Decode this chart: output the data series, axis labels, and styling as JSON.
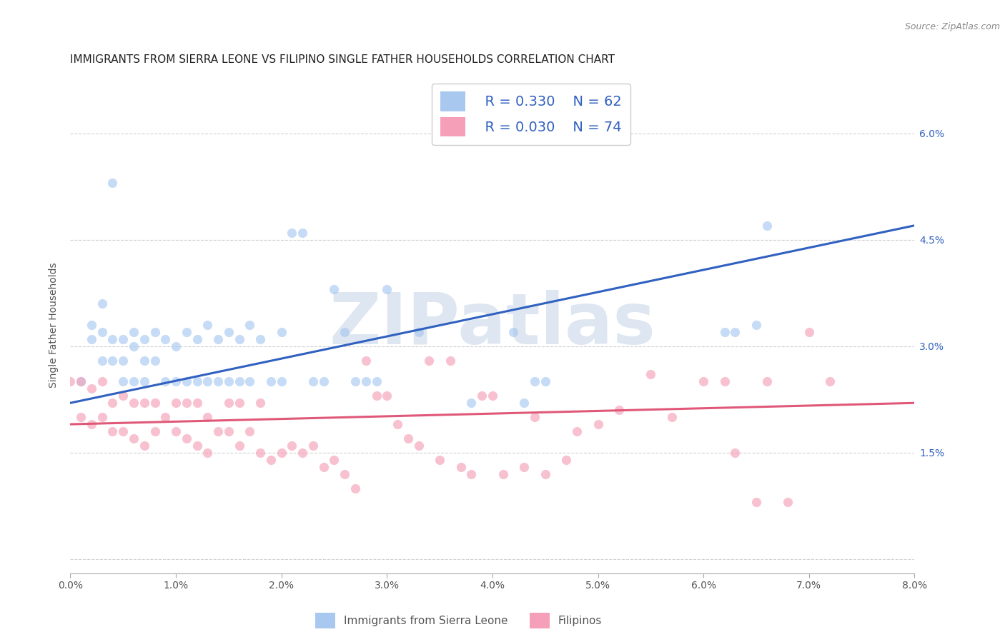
{
  "title": "IMMIGRANTS FROM SIERRA LEONE VS FILIPINO SINGLE FATHER HOUSEHOLDS CORRELATION CHART",
  "source": "Source: ZipAtlas.com",
  "ylabel": "Single Father Households",
  "xmin": 0.0,
  "xmax": 0.08,
  "ymin": -0.002,
  "ymax": 0.068,
  "xticks": [
    0.0,
    0.01,
    0.02,
    0.03,
    0.04,
    0.05,
    0.06,
    0.07,
    0.08
  ],
  "yticks": [
    0.0,
    0.015,
    0.03,
    0.045,
    0.06
  ],
  "ytick_labels": [
    "",
    "1.5%",
    "3.0%",
    "4.5%",
    "6.0%"
  ],
  "xtick_labels": [
    "0.0%",
    "1.0%",
    "2.0%",
    "3.0%",
    "4.0%",
    "5.0%",
    "6.0%",
    "7.0%",
    "8.0%"
  ],
  "legend_entries": [
    {
      "label": "Immigrants from Sierra Leone",
      "R": "0.330",
      "N": "62",
      "color": "#a8c8f0"
    },
    {
      "label": "Filipinos",
      "R": "0.030",
      "N": "74",
      "color": "#f5a0b8"
    }
  ],
  "blue_scatter_x": [
    0.001,
    0.002,
    0.002,
    0.003,
    0.003,
    0.003,
    0.004,
    0.004,
    0.004,
    0.005,
    0.005,
    0.005,
    0.006,
    0.006,
    0.006,
    0.007,
    0.007,
    0.007,
    0.008,
    0.008,
    0.009,
    0.009,
    0.01,
    0.01,
    0.011,
    0.011,
    0.012,
    0.012,
    0.013,
    0.013,
    0.014,
    0.014,
    0.015,
    0.015,
    0.016,
    0.016,
    0.017,
    0.017,
    0.018,
    0.019,
    0.02,
    0.02,
    0.021,
    0.022,
    0.023,
    0.024,
    0.025,
    0.026,
    0.027,
    0.028,
    0.029,
    0.03,
    0.033,
    0.038,
    0.042,
    0.043,
    0.044,
    0.045,
    0.062,
    0.063,
    0.065,
    0.066
  ],
  "blue_scatter_y": [
    0.025,
    0.033,
    0.031,
    0.032,
    0.028,
    0.036,
    0.031,
    0.028,
    0.053,
    0.031,
    0.028,
    0.025,
    0.03,
    0.025,
    0.032,
    0.031,
    0.028,
    0.025,
    0.032,
    0.028,
    0.031,
    0.025,
    0.03,
    0.025,
    0.032,
    0.025,
    0.031,
    0.025,
    0.033,
    0.025,
    0.031,
    0.025,
    0.032,
    0.025,
    0.031,
    0.025,
    0.033,
    0.025,
    0.031,
    0.025,
    0.032,
    0.025,
    0.046,
    0.046,
    0.025,
    0.025,
    0.038,
    0.032,
    0.025,
    0.025,
    0.025,
    0.038,
    0.032,
    0.022,
    0.032,
    0.022,
    0.025,
    0.025,
    0.032,
    0.032,
    0.033,
    0.047
  ],
  "pink_scatter_x": [
    0.0,
    0.001,
    0.001,
    0.002,
    0.002,
    0.003,
    0.003,
    0.004,
    0.004,
    0.005,
    0.005,
    0.006,
    0.006,
    0.007,
    0.007,
    0.008,
    0.008,
    0.009,
    0.01,
    0.01,
    0.011,
    0.011,
    0.012,
    0.012,
    0.013,
    0.013,
    0.014,
    0.015,
    0.015,
    0.016,
    0.016,
    0.017,
    0.018,
    0.018,
    0.019,
    0.02,
    0.021,
    0.022,
    0.023,
    0.024,
    0.025,
    0.026,
    0.027,
    0.028,
    0.029,
    0.03,
    0.031,
    0.032,
    0.033,
    0.034,
    0.035,
    0.036,
    0.037,
    0.038,
    0.039,
    0.04,
    0.041,
    0.043,
    0.044,
    0.045,
    0.047,
    0.048,
    0.05,
    0.052,
    0.055,
    0.057,
    0.06,
    0.062,
    0.063,
    0.065,
    0.066,
    0.068,
    0.07,
    0.072
  ],
  "pink_scatter_y": [
    0.025,
    0.025,
    0.02,
    0.024,
    0.019,
    0.025,
    0.02,
    0.022,
    0.018,
    0.023,
    0.018,
    0.022,
    0.017,
    0.022,
    0.016,
    0.022,
    0.018,
    0.02,
    0.022,
    0.018,
    0.022,
    0.017,
    0.022,
    0.016,
    0.02,
    0.015,
    0.018,
    0.022,
    0.018,
    0.022,
    0.016,
    0.018,
    0.022,
    0.015,
    0.014,
    0.015,
    0.016,
    0.015,
    0.016,
    0.013,
    0.014,
    0.012,
    0.01,
    0.028,
    0.023,
    0.023,
    0.019,
    0.017,
    0.016,
    0.028,
    0.014,
    0.028,
    0.013,
    0.012,
    0.023,
    0.023,
    0.012,
    0.013,
    0.02,
    0.012,
    0.014,
    0.018,
    0.019,
    0.021,
    0.026,
    0.02,
    0.025,
    0.025,
    0.015,
    0.008,
    0.025,
    0.008,
    0.032,
    0.025
  ],
  "blue_line_x": [
    0.0,
    0.08
  ],
  "blue_line_y": [
    0.022,
    0.047
  ],
  "pink_line_x": [
    0.0,
    0.08
  ],
  "pink_line_y": [
    0.019,
    0.022
  ],
  "blue_dot_color": "#a8c8f0",
  "pink_dot_color": "#f5a0b8",
  "blue_line_color": "#3060c0",
  "pink_line_color": "#e05878",
  "watermark_text": "ZIPatlas",
  "watermark_color": "#c8d8e8",
  "grid_color": "#cccccc",
  "title_fontsize": 11,
  "axis_label_fontsize": 10,
  "tick_fontsize": 10,
  "scatter_size": 90,
  "scatter_alpha": 0.65
}
